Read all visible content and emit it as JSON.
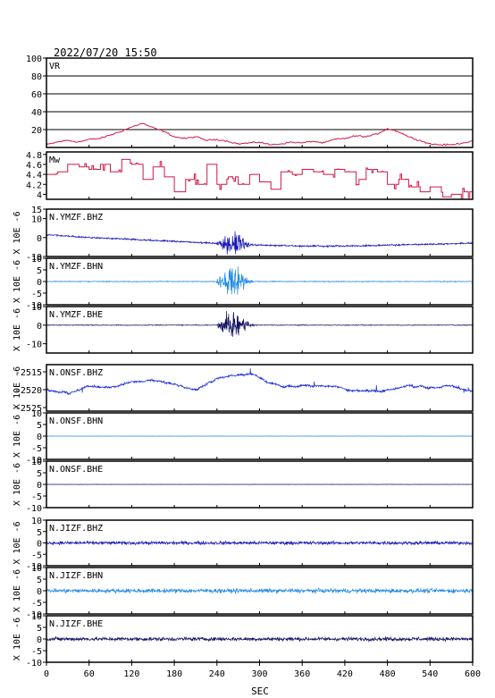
{
  "header": {
    "datetime": "2022/07/20 15:50"
  },
  "chart_data": {
    "type": "line",
    "xlabel": "SEC",
    "xlim": [
      0,
      600
    ],
    "xticks": [
      0,
      60,
      120,
      180,
      240,
      300,
      360,
      420,
      480,
      540,
      600
    ],
    "panels": [
      {
        "label": "VR",
        "color": "#d01848",
        "ylim": [
          0,
          100
        ],
        "yticks": [
          20,
          40,
          60,
          80,
          100
        ],
        "grid": true,
        "kind": "line",
        "points": [
          [
            0,
            3
          ],
          [
            15,
            6
          ],
          [
            30,
            8
          ],
          [
            45,
            6
          ],
          [
            60,
            9
          ],
          [
            75,
            10
          ],
          [
            90,
            14
          ],
          [
            105,
            18
          ],
          [
            120,
            23
          ],
          [
            135,
            27
          ],
          [
            150,
            22
          ],
          [
            165,
            18
          ],
          [
            180,
            12
          ],
          [
            195,
            10
          ],
          [
            210,
            12
          ],
          [
            225,
            8
          ],
          [
            240,
            9
          ],
          [
            255,
            7
          ],
          [
            270,
            4
          ],
          [
            285,
            5
          ],
          [
            300,
            6
          ],
          [
            315,
            3
          ],
          [
            330,
            4
          ],
          [
            345,
            6
          ],
          [
            360,
            5
          ],
          [
            375,
            7
          ],
          [
            390,
            5
          ],
          [
            405,
            9
          ],
          [
            420,
            10
          ],
          [
            435,
            13
          ],
          [
            450,
            12
          ],
          [
            465,
            15
          ],
          [
            480,
            21
          ],
          [
            495,
            18
          ],
          [
            510,
            12
          ],
          [
            525,
            8
          ],
          [
            540,
            4
          ],
          [
            555,
            3
          ],
          [
            570,
            3
          ],
          [
            585,
            5
          ],
          [
            600,
            7
          ]
        ]
      },
      {
        "label": "Mw",
        "color": "#d01848",
        "ylim": [
          3.9,
          4.85
        ],
        "yticks": [
          4.0,
          4.2,
          4.4,
          4.6,
          4.8
        ],
        "kind": "step",
        "points": [
          [
            0,
            4.4
          ],
          [
            15,
            4.45
          ],
          [
            30,
            4.6
          ],
          [
            45,
            4.55
          ],
          [
            60,
            4.5
          ],
          [
            75,
            4.6
          ],
          [
            90,
            4.45
          ],
          [
            105,
            4.7
          ],
          [
            120,
            4.6
          ],
          [
            135,
            4.3
          ],
          [
            150,
            4.55
          ],
          [
            165,
            4.35
          ],
          [
            180,
            4.05
          ],
          [
            195,
            4.3
          ],
          [
            210,
            4.2
          ],
          [
            225,
            4.6
          ],
          [
            240,
            4.2
          ],
          [
            255,
            4.35
          ],
          [
            270,
            4.2
          ],
          [
            285,
            4.4
          ],
          [
            300,
            4.25
          ],
          [
            315,
            4.1
          ],
          [
            330,
            4.45
          ],
          [
            345,
            4.4
          ],
          [
            360,
            4.5
          ],
          [
            375,
            4.45
          ],
          [
            390,
            4.4
          ],
          [
            405,
            4.5
          ],
          [
            420,
            4.45
          ],
          [
            435,
            4.3
          ],
          [
            450,
            4.5
          ],
          [
            465,
            4.45
          ],
          [
            480,
            4.2
          ],
          [
            495,
            4.3
          ],
          [
            510,
            4.15
          ],
          [
            525,
            4.05
          ],
          [
            540,
            4.15
          ],
          [
            555,
            3.95
          ],
          [
            570,
            4.0
          ],
          [
            585,
            4.05
          ],
          [
            600,
            4.0
          ]
        ]
      },
      {
        "label": "N.YMZF.BHZ",
        "color": "#1414b4",
        "ylim": [
          -10,
          15
        ],
        "yticks": [
          -10,
          0,
          10,
          15
        ],
        "scale": "X 10E -6",
        "kind": "wave",
        "base": [
          [
            0,
            1.5
          ],
          [
            60,
            0
          ],
          [
            120,
            -1
          ],
          [
            180,
            -2
          ],
          [
            240,
            -3
          ],
          [
            300,
            -4
          ],
          [
            360,
            -4.5
          ],
          [
            420,
            -4.5
          ],
          [
            480,
            -4
          ],
          [
            540,
            -3.5
          ],
          [
            600,
            -3
          ]
        ],
        "peak": 10,
        "noise": 0.6
      },
      {
        "label": "N.YMZF.BHN",
        "color": "#1e88e6",
        "ylim": [
          -10,
          10
        ],
        "yticks": [
          -10,
          -5,
          0,
          5,
          10
        ],
        "scale": "X 10E -6",
        "kind": "wave",
        "base": [
          [
            0,
            0
          ],
          [
            600,
            0
          ]
        ],
        "peak": 9,
        "noise": 0.25
      },
      {
        "label": "N.YMZF.BHE",
        "color": "#101060",
        "ylim": [
          -15,
          10
        ],
        "yticks": [
          -10,
          0,
          10
        ],
        "scale": "X 10E -6",
        "kind": "wave",
        "base": [
          [
            0,
            0
          ],
          [
            600,
            0
          ]
        ],
        "peak": 12,
        "noise": 0.3
      },
      {
        "label": "N.ONSF.BHZ",
        "color": "#1a2ad8",
        "ylim": [
          -2526,
          -2513
        ],
        "yticks": [
          -2525,
          -2520,
          -2515
        ],
        "scale": "X 10E -6",
        "kind": "walk",
        "base": [
          [
            0,
            -2520
          ],
          [
            30,
            -2521
          ],
          [
            60,
            -2519
          ],
          [
            90,
            -2519.5
          ],
          [
            120,
            -2518
          ],
          [
            150,
            -2517
          ],
          [
            180,
            -2518.5
          ],
          [
            210,
            -2520
          ],
          [
            240,
            -2517
          ],
          [
            260,
            -2516
          ],
          [
            290,
            -2515.5
          ],
          [
            310,
            -2518
          ],
          [
            330,
            -2519
          ],
          [
            360,
            -2518.5
          ],
          [
            390,
            -2519
          ],
          [
            420,
            -2520
          ],
          [
            450,
            -2520.5
          ],
          [
            480,
            -2520
          ],
          [
            510,
            -2519
          ],
          [
            540,
            -2519.5
          ],
          [
            570,
            -2519
          ],
          [
            600,
            -2520.5
          ]
        ],
        "noise": 0.45
      },
      {
        "label": "N.ONSF.BHN",
        "color": "#1e88e6",
        "ylim": [
          -10,
          10
        ],
        "yticks": [
          -10,
          -5,
          0,
          5,
          10
        ],
        "scale": "X 10E -6",
        "kind": "flat",
        "base": [
          [
            0,
            0
          ],
          [
            600,
            0
          ]
        ],
        "noise": 0.05
      },
      {
        "label": "N.ONSF.BHE",
        "color": "#101060",
        "ylim": [
          -10,
          10
        ],
        "yticks": [
          -10,
          -5,
          0,
          5,
          10
        ],
        "scale": "X 10E -6",
        "kind": "flat",
        "base": [
          [
            0,
            0
          ],
          [
            600,
            0
          ]
        ],
        "noise": 0.05
      },
      {
        "label": "N.JIZF.BHZ",
        "color": "#1414b4",
        "ylim": [
          -10,
          10
        ],
        "yticks": [
          -10,
          -5,
          0,
          5,
          10
        ],
        "scale": "X 10E -6",
        "kind": "noise",
        "base": [
          [
            0,
            0
          ],
          [
            600,
            0
          ]
        ],
        "noise": 0.9
      },
      {
        "label": "N.JIZF.BHN",
        "color": "#1e88e6",
        "ylim": [
          -10,
          10
        ],
        "yticks": [
          -10,
          -5,
          0,
          5,
          10
        ],
        "scale": "X 10E -6",
        "kind": "noise",
        "base": [
          [
            0,
            0
          ],
          [
            600,
            0
          ]
        ],
        "noise": 1.1
      },
      {
        "label": "N.JIZF.BHE",
        "color": "#101060",
        "ylim": [
          -10,
          10
        ],
        "yticks": [
          -10,
          -5,
          0,
          5,
          10
        ],
        "scale": "X 10E -6",
        "kind": "noise",
        "base": [
          [
            0,
            0
          ],
          [
            600,
            0
          ]
        ],
        "noise": 1.0
      }
    ]
  }
}
